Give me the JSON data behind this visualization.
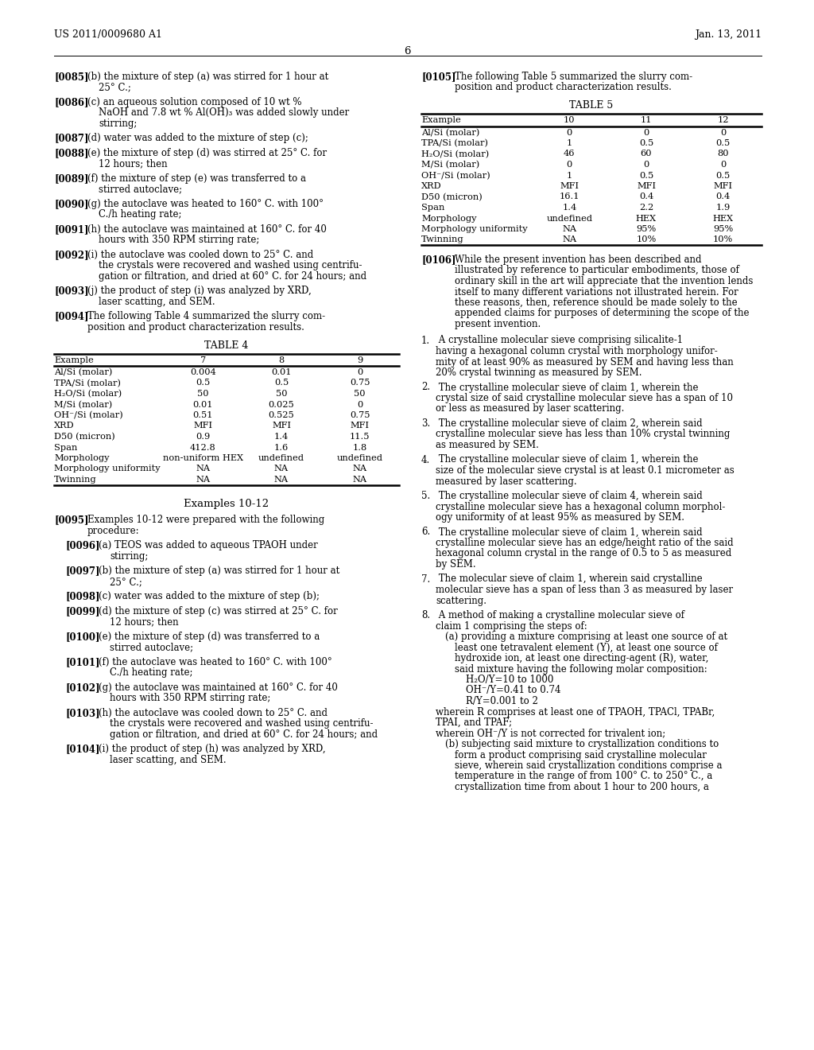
{
  "header_left": "US 2011/0009680 A1",
  "header_right": "Jan. 13, 2011",
  "page_number": "6",
  "bg_color": "#ffffff",
  "table4": {
    "headers": [
      "Example",
      "7",
      "8",
      "9"
    ],
    "rows": [
      [
        "Al/Si (molar)",
        "0.004",
        "0.01",
        "0"
      ],
      [
        "TPA/Si (molar)",
        "0.5",
        "0.5",
        "0.75"
      ],
      [
        "H₂O/Si (molar)",
        "50",
        "50",
        "50"
      ],
      [
        "M/Si (molar)",
        "0.01",
        "0.025",
        "0"
      ],
      [
        "OH⁻/Si (molar)",
        "0.51",
        "0.525",
        "0.75"
      ],
      [
        "XRD",
        "MFI",
        "MFI",
        "MFI"
      ],
      [
        "D50 (micron)",
        "0.9",
        "1.4",
        "11.5"
      ],
      [
        "Span",
        "412.8",
        "1.6",
        "1.8"
      ],
      [
        "Morphology",
        "non-uniform HEX",
        "undefined",
        "undefined"
      ],
      [
        "Morphology uniformity",
        "NA",
        "NA",
        "NA"
      ],
      [
        "Twinning",
        "NA",
        "NA",
        "NA"
      ]
    ]
  },
  "table5": {
    "headers": [
      "Example",
      "10",
      "11",
      "12"
    ],
    "rows": [
      [
        "Al/Si (molar)",
        "0",
        "0",
        "0"
      ],
      [
        "TPA/Si (molar)",
        "1",
        "0.5",
        "0.5"
      ],
      [
        "H₂O/Si (molar)",
        "46",
        "60",
        "80"
      ],
      [
        "M/Si (molar)",
        "0",
        "0",
        "0"
      ],
      [
        "OH⁻/Si (molar)",
        "1",
        "0.5",
        "0.5"
      ],
      [
        "XRD",
        "MFI",
        "MFI",
        "MFI"
      ],
      [
        "D50 (micron)",
        "16.1",
        "0.4",
        "0.4"
      ],
      [
        "Span",
        "1.4",
        "2.2",
        "1.9"
      ],
      [
        "Morphology",
        "undefined",
        "HEX",
        "HEX"
      ],
      [
        "Morphology uniformity",
        "NA",
        "95%",
        "95%"
      ],
      [
        "Twinning",
        "NA",
        "10%",
        "10%"
      ]
    ]
  }
}
